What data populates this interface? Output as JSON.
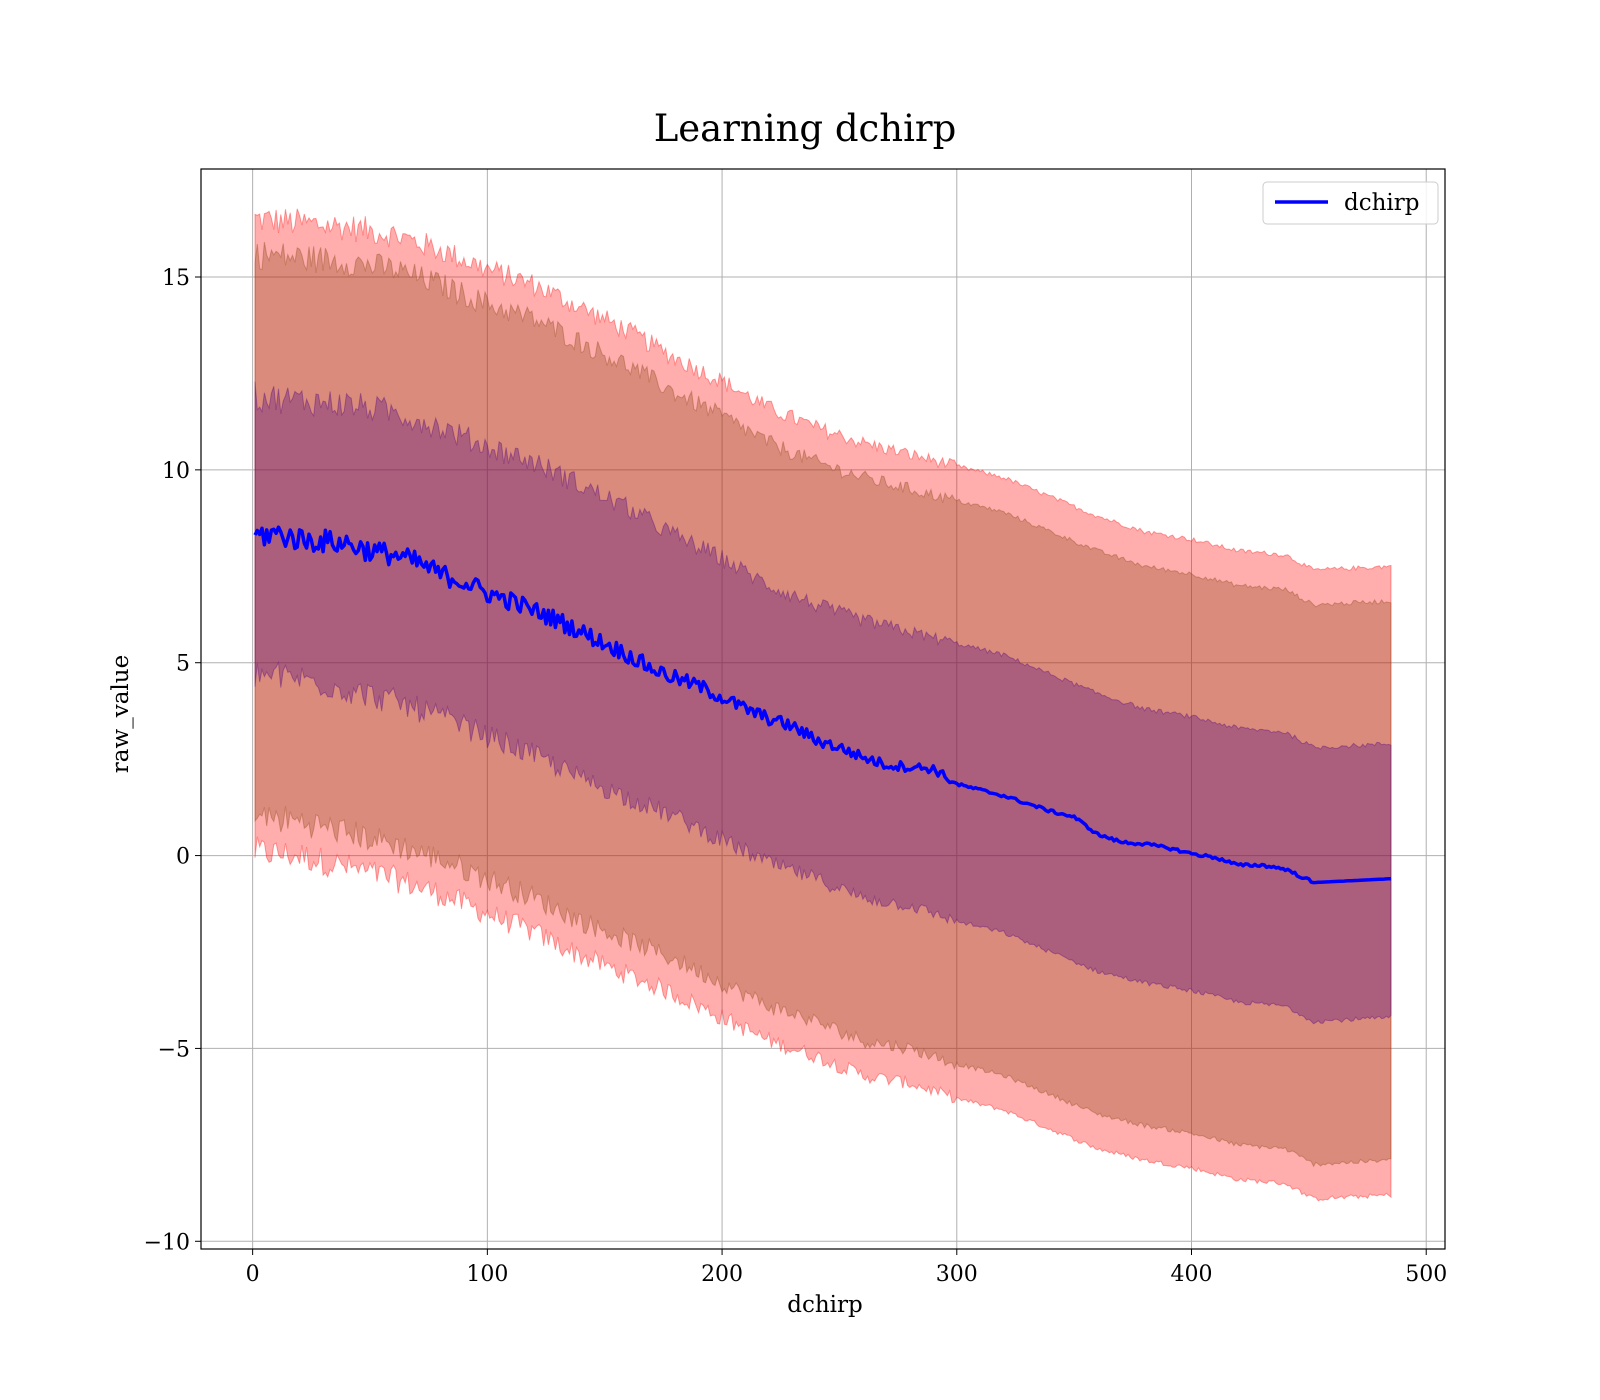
{
  "chart_data": {
    "type": "line",
    "title": "Learning dchirp",
    "xlabel": "dchirp",
    "ylabel": "raw_value",
    "xlim": [
      -22,
      508
    ],
    "ylim": [
      -10.2,
      17.8
    ],
    "xticks": [
      0,
      100,
      200,
      300,
      400,
      500
    ],
    "xtick_labels": [
      "0",
      "100",
      "200",
      "300",
      "400",
      "500"
    ],
    "yticks": [
      -10,
      -5,
      0,
      5,
      10,
      15
    ],
    "ytick_labels": [
      "−10",
      "−5",
      "0",
      "5",
      "10",
      "15"
    ],
    "grid": true,
    "legend": {
      "position": "top-right",
      "entries": [
        "dchirp"
      ]
    },
    "colors": {
      "line": "#0000ff",
      "band_outer": "#ff0000",
      "band_middle": "#8b4513",
      "band_inner": "#4b0082",
      "grid": "#b0b0b0"
    },
    "series": [
      {
        "name": "dchirp",
        "x": [
          1,
          10,
          20,
          30,
          40,
          50,
          60,
          70,
          80,
          90,
          100,
          110,
          120,
          130,
          140,
          150,
          160,
          170,
          180,
          190,
          200,
          210,
          220,
          230,
          240,
          250,
          260,
          270,
          280,
          290,
          300,
          310,
          320,
          330,
          340,
          350,
          360,
          370,
          380,
          390,
          400,
          410,
          420,
          430,
          440,
          452,
          485
        ],
        "y": [
          8.3,
          8.35,
          8.2,
          8.15,
          8.1,
          7.9,
          7.8,
          7.6,
          7.3,
          7.1,
          6.8,
          6.6,
          6.35,
          6.1,
          5.8,
          5.5,
          5.2,
          4.85,
          4.6,
          4.4,
          4.1,
          3.8,
          3.55,
          3.35,
          3.0,
          2.8,
          2.55,
          2.35,
          2.3,
          2.25,
          1.85,
          1.7,
          1.55,
          1.35,
          1.15,
          1.0,
          0.55,
          0.35,
          0.3,
          0.2,
          0.05,
          -0.05,
          -0.25,
          -0.25,
          -0.35,
          -0.7,
          -0.6
        ]
      }
    ],
    "bands": [
      {
        "label": "outer",
        "x": [
          1,
          20,
          40,
          60,
          80,
          100,
          120,
          140,
          160,
          180,
          200,
          220,
          240,
          260,
          280,
          300,
          320,
          340,
          360,
          380,
          400,
          420,
          440,
          452,
          485
        ],
        "upper": [
          16.5,
          16.4,
          16.3,
          16.1,
          15.7,
          15.2,
          14.8,
          14.2,
          13.6,
          12.9,
          12.3,
          11.6,
          11.1,
          10.7,
          10.4,
          10.1,
          9.8,
          9.3,
          8.8,
          8.4,
          8.2,
          7.9,
          7.8,
          7.4,
          7.5
        ],
        "lower": [
          0.1,
          0.0,
          -0.3,
          -0.6,
          -1.0,
          -1.5,
          -2.0,
          -2.6,
          -3.1,
          -3.6,
          -4.2,
          -4.8,
          -5.2,
          -5.7,
          -5.9,
          -6.3,
          -6.6,
          -7.1,
          -7.6,
          -7.9,
          -8.1,
          -8.4,
          -8.5,
          -8.9,
          -8.8
        ]
      },
      {
        "label": "middle",
        "x": [
          1,
          20,
          40,
          60,
          80,
          100,
          120,
          140,
          160,
          180,
          200,
          220,
          240,
          260,
          280,
          300,
          320,
          340,
          360,
          380,
          400,
          420,
          440,
          452,
          485
        ],
        "upper": [
          15.6,
          15.5,
          15.4,
          15.2,
          14.8,
          14.3,
          13.9,
          13.3,
          12.7,
          12.0,
          11.4,
          10.7,
          10.2,
          9.8,
          9.5,
          9.2,
          8.9,
          8.4,
          7.9,
          7.5,
          7.3,
          7.0,
          6.9,
          6.5,
          6.6
        ],
        "lower": [
          1.0,
          0.9,
          0.6,
          0.3,
          -0.1,
          -0.6,
          -1.1,
          -1.7,
          -2.2,
          -2.7,
          -3.3,
          -3.9,
          -4.3,
          -4.8,
          -5.0,
          -5.4,
          -5.7,
          -6.2,
          -6.7,
          -7.0,
          -7.2,
          -7.5,
          -7.6,
          -8.0,
          -7.9
        ]
      },
      {
        "label": "inner",
        "x": [
          1,
          20,
          40,
          60,
          80,
          100,
          120,
          140,
          160,
          180,
          200,
          220,
          240,
          260,
          280,
          300,
          320,
          340,
          360,
          380,
          400,
          420,
          440,
          452,
          485
        ],
        "upper": [
          11.9,
          11.8,
          11.7,
          11.5,
          11.1,
          10.6,
          10.2,
          9.6,
          9.0,
          8.3,
          7.7,
          7.0,
          6.5,
          6.1,
          5.8,
          5.5,
          5.2,
          4.7,
          4.2,
          3.8,
          3.6,
          3.3,
          3.2,
          2.8,
          2.9
        ],
        "lower": [
          4.7,
          4.6,
          4.3,
          4.0,
          3.6,
          3.1,
          2.6,
          2.0,
          1.5,
          1.0,
          0.4,
          -0.2,
          -0.6,
          -1.1,
          -1.3,
          -1.7,
          -2.0,
          -2.5,
          -3.0,
          -3.3,
          -3.5,
          -3.8,
          -3.9,
          -4.3,
          -4.2
        ]
      }
    ]
  }
}
